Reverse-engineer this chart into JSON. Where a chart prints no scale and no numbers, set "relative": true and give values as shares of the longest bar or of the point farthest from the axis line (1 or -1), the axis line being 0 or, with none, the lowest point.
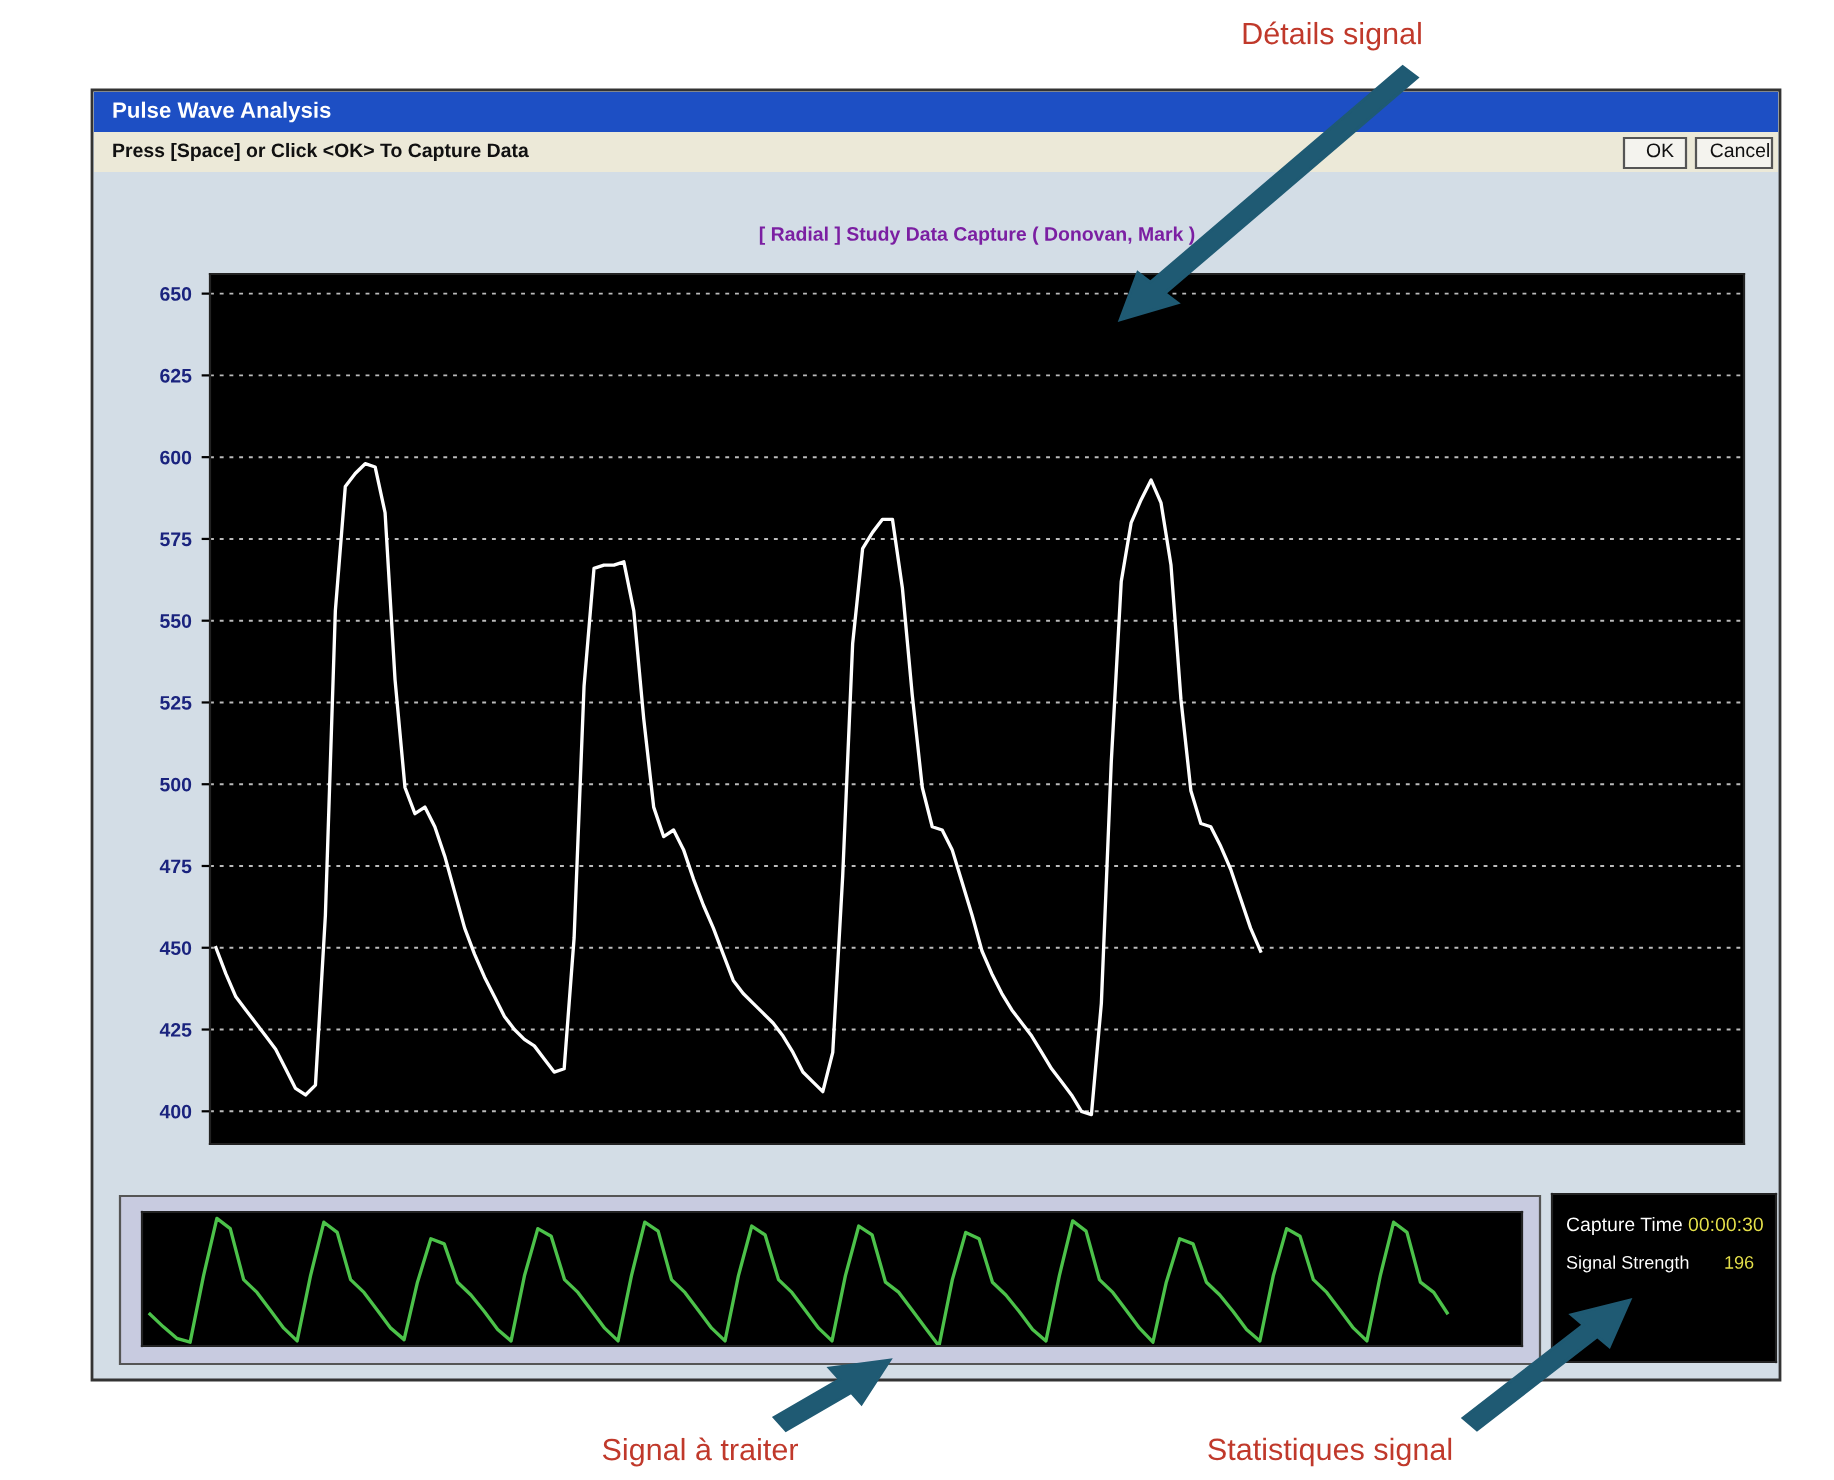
{
  "chart_data": [
    {
      "type": "line",
      "title": "[ Radial ] Study Data Capture ( Donovan, Mark )",
      "annotations": [
        "Pulse Wave Analysis",
        "Press [Space] or Click <OK> To Capture Data",
        "OK",
        "Cancel",
        "Détails signal"
      ],
      "categories": [
        null,
        null,
        null,
        null,
        null,
        null,
        null,
        null,
        null,
        null,
        null,
        null,
        null,
        null,
        null,
        null,
        null,
        null,
        null,
        null,
        null,
        null,
        null,
        null,
        null,
        null,
        null,
        null,
        null,
        null,
        null,
        null,
        null,
        null,
        null,
        null,
        null,
        null,
        null,
        null,
        null,
        null,
        null,
        null,
        null,
        null,
        null,
        null,
        null,
        null,
        null,
        null,
        null,
        null,
        null,
        null,
        null,
        null,
        null,
        null,
        null,
        null,
        null,
        null,
        null,
        null,
        null,
        null,
        null,
        null,
        null,
        null,
        null,
        null,
        null,
        null,
        null,
        null,
        null,
        null,
        null,
        null,
        null,
        null,
        null,
        null,
        null,
        null,
        null,
        null,
        null,
        null,
        null,
        null,
        null,
        null,
        null,
        null,
        null,
        null,
        null,
        null,
        null,
        null,
        null,
        null,
        null,
        null,
        null,
        null,
        null,
        null,
        null,
        null,
        null,
        null,
        null,
        null,
        null,
        null,
        null,
        null,
        null,
        null,
        null,
        null,
        null,
        null,
        null,
        null,
        null,
        null,
        null,
        null,
        null,
        null,
        null,
        null,
        null,
        null,
        null,
        null,
        null,
        null,
        null,
        null,
        null,
        null,
        null,
        null,
        null,
        null,
        null,
        null
      ],
      "series": [
        {
          "color": "#ffffff",
          "values": [
            450,
            442,
            435,
            431,
            427,
            423,
            419,
            413,
            407,
            405,
            408,
            460,
            553,
            591,
            595,
            598,
            597,
            583,
            532,
            499,
            491,
            493,
            487,
            478,
            467,
            456,
            448,
            441,
            435,
            429,
            425,
            422,
            420,
            416,
            412,
            413,
            453,
            530,
            566,
            567,
            567,
            568,
            553,
            520,
            493,
            484,
            486,
            480,
            471,
            463,
            456,
            448,
            440,
            436,
            433,
            430,
            427,
            423,
            418,
            412,
            409,
            406,
            418,
            472,
            543,
            572,
            577,
            581,
            581,
            560,
            527,
            499,
            487,
            486,
            480,
            470,
            460,
            449,
            442,
            436,
            431,
            427,
            423,
            418,
            413,
            409,
            405,
            400,
            399,
            433,
            507,
            562,
            580,
            587,
            593,
            586,
            567,
            526,
            498,
            488,
            487,
            481,
            474,
            465,
            456,
            449,
            null,
            null,
            null,
            null,
            null,
            null,
            null,
            null,
            null,
            null,
            null,
            null,
            null,
            null,
            null,
            null,
            null,
            null,
            null,
            null,
            null,
            null,
            null,
            null,
            null,
            null,
            null,
            null,
            null,
            null,
            null,
            null,
            null,
            null,
            null,
            null,
            null,
            null,
            null,
            null,
            null,
            null,
            null,
            null,
            null,
            null,
            null,
            null
          ]
        }
      ],
      "ylim": [
        390,
        656
      ],
      "yticks": [
        400,
        425,
        450,
        475,
        500,
        525,
        550,
        575,
        600,
        625,
        650
      ],
      "grid": "y",
      "tick_labels": "y",
      "legend": false
    },
    {
      "type": "line",
      "relative": true,
      "annotations": [
        "Signal à traiter"
      ],
      "categories": [
        null,
        null,
        null,
        null,
        null,
        null,
        null,
        null,
        null,
        null,
        null,
        null,
        null,
        null,
        null,
        null,
        null,
        null,
        null,
        null,
        null,
        null,
        null,
        null,
        null,
        null,
        null,
        null,
        null,
        null,
        null,
        null,
        null,
        null,
        null,
        null,
        null,
        null,
        null,
        null,
        null,
        null,
        null,
        null,
        null,
        null,
        null,
        null,
        null,
        null,
        null,
        null,
        null,
        null,
        null,
        null,
        null,
        null,
        null,
        null,
        null,
        null,
        null,
        null,
        null,
        null,
        null,
        null,
        null,
        null,
        null,
        null,
        null,
        null,
        null,
        null,
        null,
        null,
        null,
        null,
        null,
        null,
        null,
        null,
        null,
        null,
        null,
        null,
        null,
        null,
        null,
        null,
        null,
        null,
        null,
        null,
        null,
        null,
        null,
        null,
        null,
        null,
        null
      ],
      "series": [
        {
          "color": "#4cc24a",
          "values": [
            0.25,
            0.15,
            0.06,
            0.03,
            0.55,
            1.0,
            0.92,
            0.52,
            0.42,
            0.28,
            0.14,
            0.04,
            0.55,
            0.97,
            0.89,
            0.52,
            0.42,
            0.28,
            0.14,
            0.05,
            0.5,
            0.84,
            0.8,
            0.5,
            0.4,
            0.27,
            0.13,
            0.04,
            0.55,
            0.92,
            0.86,
            0.52,
            0.42,
            0.28,
            0.14,
            0.04,
            0.55,
            0.97,
            0.9,
            0.52,
            0.42,
            0.28,
            0.14,
            0.04,
            0.55,
            0.94,
            0.87,
            0.52,
            0.42,
            0.28,
            0.14,
            0.04,
            0.55,
            0.94,
            0.87,
            0.5,
            0.42,
            0.28,
            0.14,
            0.0,
            0.52,
            0.89,
            0.84,
            0.5,
            0.4,
            0.27,
            0.13,
            0.04,
            0.55,
            0.98,
            0.9,
            0.52,
            0.42,
            0.28,
            0.14,
            0.03,
            0.5,
            0.84,
            0.8,
            0.5,
            0.4,
            0.27,
            0.13,
            0.04,
            0.55,
            0.92,
            0.86,
            0.52,
            0.42,
            0.28,
            0.14,
            0.04,
            0.55,
            0.97,
            0.89,
            0.5,
            0.42,
            0.26,
            null,
            null,
            null,
            null,
            null
          ]
        }
      ],
      "tick_labels": false,
      "legend": false
    },
    {
      "type": "other",
      "annotations": [
        "Capture Time",
        "00:00:30",
        "Signal Strength",
        "196",
        "Statistiques signal"
      ]
    }
  ]
}
